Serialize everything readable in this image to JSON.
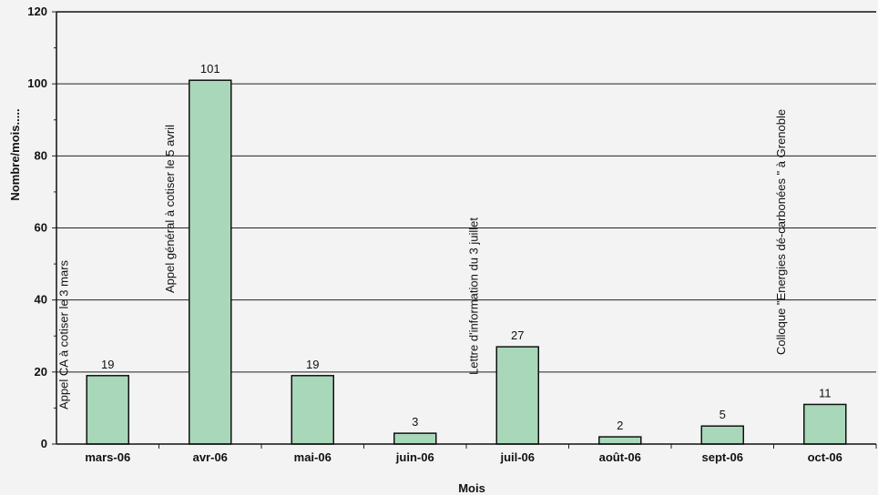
{
  "chart_data": {
    "type": "bar",
    "title": "",
    "xlabel": "Mois",
    "ylabel": "Nombre/mois.....",
    "ylim": [
      0,
      120
    ],
    "yticks": [
      0,
      20,
      40,
      60,
      80,
      100,
      120
    ],
    "grid": true,
    "categories": [
      "mars-06",
      "avr-06",
      "mai-06",
      "juin-06",
      "juil-06",
      "août-06",
      "sept-06",
      "oct-06"
    ],
    "values": [
      19,
      101,
      19,
      3,
      27,
      2,
      5,
      11
    ],
    "data_labels": [
      "19",
      "101",
      "19",
      "3",
      "27",
      "2",
      "5",
      "11"
    ],
    "bar_color": "#a8d8b9",
    "bar_border_color": "#111111",
    "annotations": [
      {
        "category": "mars-06",
        "text": "Appel CA à cotiser le 3 mars"
      },
      {
        "category": "avr-06",
        "text": "Appel général à cotiser le 5 avril"
      },
      {
        "category": "juil-06",
        "text": "Lettre d'information du 3 juillet"
      },
      {
        "category": "oct-06",
        "text": "Colloque \"Energies dé-carbonées \" à Grenoble"
      }
    ]
  }
}
